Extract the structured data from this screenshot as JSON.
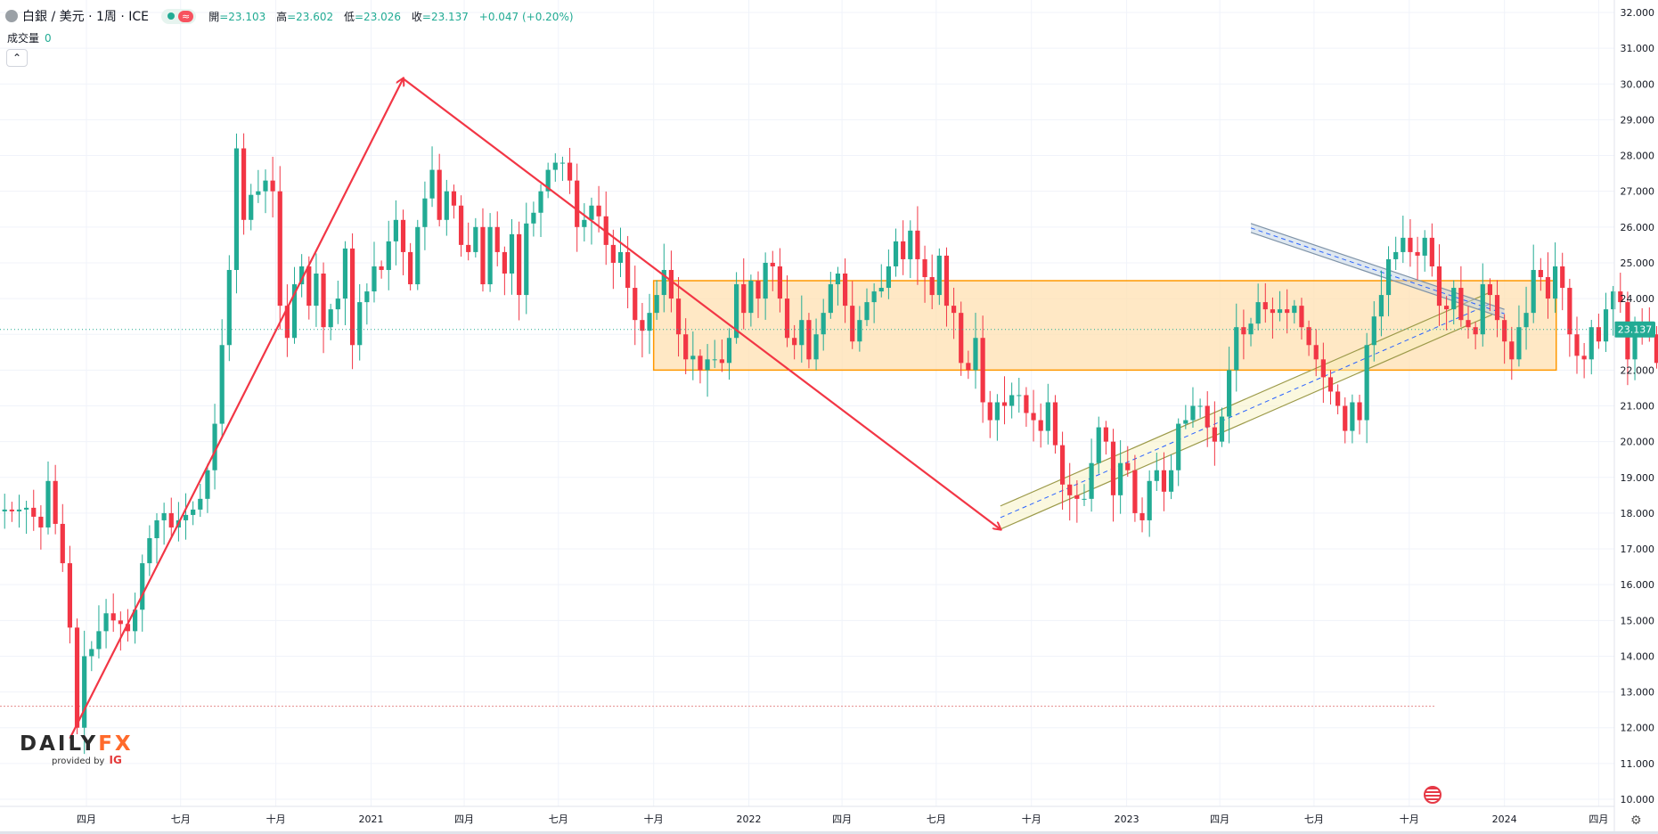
{
  "header": {
    "symbol": "白銀 / 美元 · 1周 · ICE",
    "pill_badge": "≈",
    "open_label": "開",
    "open": "=23.103",
    "high_label": "高",
    "high": "=23.602",
    "low_label": "低",
    "low": "=23.026",
    "close_label": "收",
    "close": "=23.137",
    "change": "+0.047 (+0.20%)"
  },
  "volume": {
    "label": "成交量",
    "value": "0"
  },
  "collapse_icon": "chevron-up-icon",
  "collapse_glyph": "⌃",
  "logo": {
    "brand_a": "DAILY",
    "brand_b": "FX",
    "sub": "provided by",
    "ig": "IG"
  },
  "colors": {
    "up": "#22ab94",
    "down": "#f23645",
    "trend": "#f23645",
    "zone": "#ff9800",
    "channel": "#bdb76b",
    "wedge": "#9aaec4"
  },
  "chart_data": {
    "type": "candlestick",
    "interval": "1 week",
    "y_axis": {
      "min": 10,
      "max": 32,
      "ticks": [
        10,
        11,
        12,
        13,
        14,
        15,
        16,
        17,
        18,
        19,
        20,
        21,
        22,
        23,
        24,
        25,
        26,
        27,
        28,
        29,
        30,
        31,
        32
      ],
      "decimals": 3,
      "position": "right"
    },
    "x_axis": {
      "start": "2020-01-13",
      "ticks": [
        {
          "label": "四月",
          "date": "2020-04-01"
        },
        {
          "label": "七月",
          "date": "2020-07-01"
        },
        {
          "label": "十月",
          "date": "2020-10-01"
        },
        {
          "label": "2021",
          "date": "2021-01-01"
        },
        {
          "label": "四月",
          "date": "2021-04-01"
        },
        {
          "label": "七月",
          "date": "2021-07-01"
        },
        {
          "label": "十月",
          "date": "2021-10-01"
        },
        {
          "label": "2022",
          "date": "2022-01-01"
        },
        {
          "label": "四月",
          "date": "2022-04-01"
        },
        {
          "label": "七月",
          "date": "2022-07-01"
        },
        {
          "label": "十月",
          "date": "2022-10-01"
        },
        {
          "label": "2023",
          "date": "2023-01-01"
        },
        {
          "label": "四月",
          "date": "2023-04-01"
        },
        {
          "label": "七月",
          "date": "2023-07-01"
        },
        {
          "label": "十月",
          "date": "2023-10-01"
        },
        {
          "label": "2024",
          "date": "2024-01-01"
        },
        {
          "label": "四月",
          "date": "2024-04-01"
        }
      ]
    },
    "last_price": {
      "value": 23.137,
      "label": "23.137"
    },
    "reference_line": 12.6,
    "closes": [
      18.1,
      18.05,
      18.1,
      18.15,
      17.9,
      17.6,
      18.9,
      17.7,
      16.6,
      14.8,
      12.0,
      14.0,
      14.2,
      14.7,
      15.2,
      15.0,
      14.9,
      14.7,
      15.3,
      16.6,
      17.3,
      17.8,
      18.0,
      17.6,
      17.8,
      17.95,
      18.1,
      18.4,
      19.2,
      20.5,
      22.7,
      24.8,
      28.2,
      26.2,
      26.9,
      27.0,
      27.3,
      27.0,
      23.8,
      22.9,
      24.4,
      24.9,
      23.8,
      24.7,
      23.2,
      23.7,
      24.0,
      25.4,
      22.7,
      23.9,
      24.2,
      24.9,
      24.8,
      25.6,
      26.2,
      25.3,
      24.4,
      26.0,
      26.8,
      27.6,
      26.2,
      27.0,
      26.6,
      25.5,
      25.3,
      26.0,
      24.4,
      26.0,
      25.3,
      24.7,
      25.8,
      24.1,
      26.1,
      26.4,
      27.0,
      27.6,
      27.8,
      27.8,
      27.3,
      26.0,
      26.2,
      26.6,
      26.3,
      25.5,
      25.0,
      25.3,
      24.3,
      23.4,
      23.1,
      23.6,
      24.1,
      24.8,
      24.0,
      23.0,
      22.3,
      22.4,
      22.0,
      22.3,
      22.3,
      22.2,
      22.9,
      24.4,
      23.6,
      24.5,
      24.0,
      25.0,
      24.9,
      24.0,
      22.9,
      22.7,
      23.4,
      22.3,
      23.0,
      23.6,
      24.4,
      24.7,
      23.8,
      22.8,
      23.4,
      23.9,
      24.2,
      24.3,
      24.9,
      25.6,
      25.1,
      25.9,
      25.1,
      24.6,
      24.1,
      25.2,
      23.8,
      23.6,
      22.2,
      22.0,
      22.9,
      21.1,
      20.6,
      21.1,
      21.0,
      21.3,
      21.3,
      20.8,
      20.6,
      20.3,
      21.1,
      19.9,
      18.8,
      18.5,
      18.4,
      18.4,
      19.4,
      20.4,
      20.0,
      18.5,
      19.4,
      19.2,
      18.0,
      17.8,
      18.9,
      19.2,
      18.6,
      19.2,
      20.5,
      20.6,
      21.0,
      21.0,
      20.4,
      20.0,
      20.7,
      22.0,
      23.2,
      23.0,
      23.3,
      23.9,
      23.7,
      23.6,
      23.7,
      23.6,
      23.8,
      23.2,
      22.7,
      22.3,
      21.8,
      21.4,
      21.0,
      20.3,
      21.1,
      20.6,
      22.7,
      23.5,
      24.1,
      25.1,
      25.3,
      25.7,
      25.3,
      25.2,
      25.7,
      24.9,
      23.8,
      23.7,
      24.3,
      23.4,
      23.2,
      23.0,
      24.4,
      24.1,
      23.4,
      22.8,
      22.3,
      23.2,
      23.6,
      24.8,
      24.6,
      24.0,
      24.9,
      24.3,
      23.0,
      22.4,
      22.3,
      23.2,
      22.8,
      23.7,
      24.2,
      23.9,
      22.3,
      23.2,
      23.1,
      23.0,
      22.2,
      21.5,
      22.5,
      23.2,
      23.0,
      23.14
    ],
    "drawings": {
      "trend_up": [
        {
          "date": "2020-03-16",
          "price": 11.7
        },
        {
          "date": "2021-02-01",
          "price": 30.15
        }
      ],
      "trend_down": [
        {
          "date": "2021-02-01",
          "price": 30.15
        },
        {
          "date": "2022-09-01",
          "price": 17.55
        }
      ],
      "zone": {
        "from": "2021-10-01",
        "to": "2024-02-20",
        "low": 22.0,
        "high": 24.5
      },
      "channel": {
        "from": "2022-09-01",
        "to": "2023-12-20",
        "start_low": 17.55,
        "start_high": 18.2,
        "end_low": 23.55,
        "end_high": 24.2
      },
      "wedge": {
        "from": "2023-05-01",
        "to": "2024-01-01",
        "start_low": 25.85,
        "start_high": 26.1,
        "end_low": 23.45,
        "end_high": 23.7
      }
    }
  }
}
